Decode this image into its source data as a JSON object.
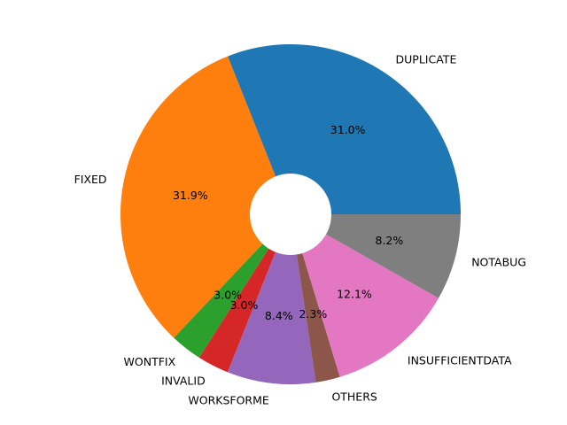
{
  "chart_data": {
    "type": "pie",
    "title": "",
    "startangle": 0,
    "direction": "counterclockwise",
    "donut_hole": true,
    "slices": [
      {
        "label": "DUPLICATE",
        "value": 31.0,
        "pct_label": "31.0%",
        "color": "#1f77b4"
      },
      {
        "label": "FIXED",
        "value": 31.9,
        "pct_label": "31.9%",
        "color": "#ff7f0e"
      },
      {
        "label": "WONTFIX",
        "value": 3.0,
        "pct_label": "3.0%",
        "color": "#2ca02c"
      },
      {
        "label": "INVALID",
        "value": 3.0,
        "pct_label": "3.0%",
        "color": "#d62728"
      },
      {
        "label": "WORKSFORME",
        "value": 8.4,
        "pct_label": "8.4%",
        "color": "#9467bd"
      },
      {
        "label": "OTHERS",
        "value": 2.3,
        "pct_label": "2.3%",
        "color": "#8c564b"
      },
      {
        "label": "INSUFFICIENTDATA",
        "value": 12.1,
        "pct_label": "12.1%",
        "color": "#e377c2"
      },
      {
        "label": "NOTABUG",
        "value": 8.2,
        "pct_label": "8.2%",
        "color": "#7f7f7f"
      }
    ]
  }
}
